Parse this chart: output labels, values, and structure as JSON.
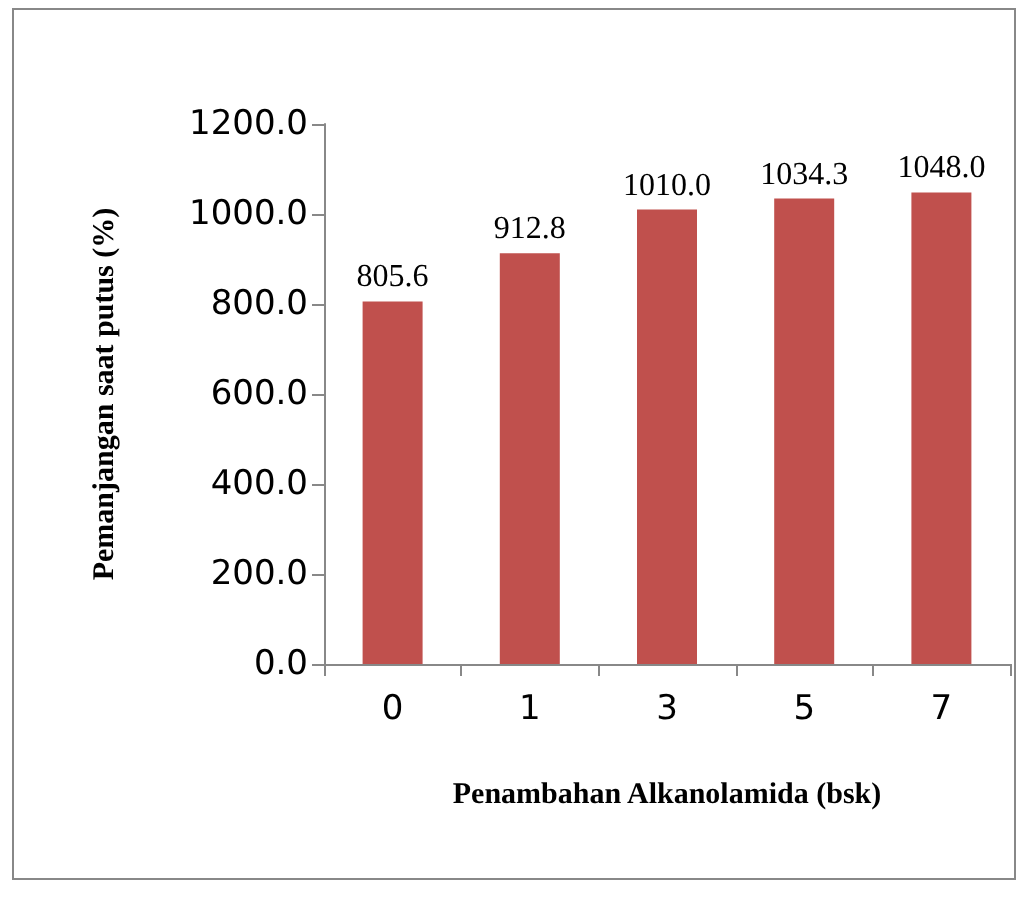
{
  "chart_data": {
    "type": "bar",
    "xlabel": "Penambahan Alkanolamida (bsk)",
    "ylabel": "Pemanjangan saat putus (%)",
    "categories": [
      "0",
      "1",
      "3",
      "5",
      "7"
    ],
    "values": [
      805.6,
      912.8,
      1010.0,
      1034.3,
      1048.0
    ],
    "value_labels": [
      "805.6",
      "912.8",
      "1010.0",
      "1034.3",
      "1048.0"
    ],
    "color": "#c0504d",
    "ylim": [
      0,
      1200
    ],
    "yticks": [
      {
        "value": 0,
        "label": "0.0"
      },
      {
        "value": 200,
        "label": "200.0"
      },
      {
        "value": 400,
        "label": "400.0"
      },
      {
        "value": 600,
        "label": "600.0"
      },
      {
        "value": 800,
        "label": "800.0"
      },
      {
        "value": 1000,
        "label": "1000.0"
      },
      {
        "value": 1200,
        "label": "1200.0"
      }
    ],
    "orientation": "vertical"
  }
}
